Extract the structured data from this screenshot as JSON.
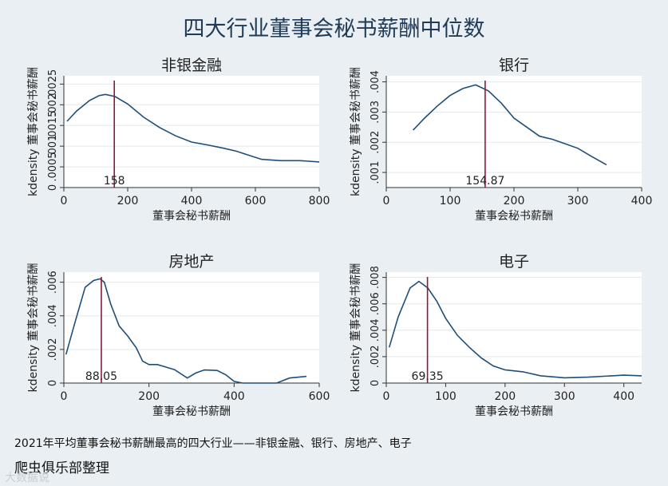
{
  "title": "四大行业董事会秘书薪酬中位数",
  "note": "2021年平均董事会秘书薪酬最高的四大行业——非银金融、银行、房地产、电子",
  "credit": "爬虫俱乐部整理",
  "watermark": "大数据说",
  "colors": {
    "background": "#e9eff3",
    "plot": "#ffffff",
    "line": "#1f4e79",
    "median": "#8b1a3a",
    "text": "#1f3b57"
  },
  "chart_data": [
    {
      "type": "line",
      "title": "非银金融",
      "xlabel": "董事会秘书薪酬",
      "ylabel": "kdensity 董事会秘书薪酬",
      "xlim": [
        0,
        800
      ],
      "ylim": [
        0,
        0.0027
      ],
      "xticks": [
        0,
        200,
        400,
        600,
        800
      ],
      "yticks": [
        0,
        0.0005,
        0.001,
        0.0015,
        0.002,
        0.0025
      ],
      "ytick_labels": [
        "0",
        ".0005",
        ".001",
        ".0015",
        ".002",
        ".0025"
      ],
      "median": 158,
      "median_label": "158",
      "x": [
        10,
        40,
        80,
        110,
        130,
        160,
        200,
        250,
        300,
        350,
        400,
        450,
        500,
        540,
        580,
        620,
        680,
        740,
        800
      ],
      "y": [
        0.0016,
        0.00185,
        0.0021,
        0.00222,
        0.00225,
        0.0022,
        0.00202,
        0.0017,
        0.00145,
        0.00125,
        0.0011,
        0.00103,
        0.00095,
        0.00088,
        0.00078,
        0.00068,
        0.00065,
        0.00065,
        0.00062
      ]
    },
    {
      "type": "line",
      "title": "银行",
      "xlabel": "董事会秘书薪酬",
      "ylabel": "kdensity 董事会秘书薪酬",
      "xlim": [
        0,
        400
      ],
      "ylim": [
        0.0005,
        0.0042
      ],
      "xticks": [
        0,
        100,
        200,
        300,
        400
      ],
      "yticks": [
        0.001,
        0.002,
        0.003,
        0.004
      ],
      "ytick_labels": [
        ".001",
        ".002",
        ".003",
        ".004"
      ],
      "median": 154.87,
      "median_label": "154.87",
      "x": [
        42,
        60,
        80,
        100,
        120,
        140,
        160,
        180,
        200,
        220,
        240,
        260,
        280,
        300,
        320,
        345
      ],
      "y": [
        0.0024,
        0.0028,
        0.0032,
        0.00355,
        0.00378,
        0.0039,
        0.0037,
        0.0033,
        0.0028,
        0.0025,
        0.0022,
        0.0021,
        0.00195,
        0.0018,
        0.00155,
        0.00125
      ]
    },
    {
      "type": "line",
      "title": "房地产",
      "xlabel": "董事会秘书薪酬",
      "ylabel": "kdensity 董事会秘书薪酬",
      "xlim": [
        0,
        600
      ],
      "ylim": [
        0,
        0.0066
      ],
      "xticks": [
        0,
        200,
        400,
        600
      ],
      "yticks": [
        0,
        0.002,
        0.004,
        0.006
      ],
      "ytick_labels": [
        "0",
        ".002",
        ".004",
        ".006"
      ],
      "median": 88.05,
      "median_label": "88.05",
      "x": [
        5,
        25,
        50,
        70,
        85,
        95,
        110,
        130,
        150,
        170,
        185,
        200,
        220,
        240,
        260,
        290,
        310,
        330,
        360,
        380,
        400,
        420,
        450,
        500,
        530,
        570
      ],
      "y": [
        0.0017,
        0.0035,
        0.0057,
        0.0061,
        0.0062,
        0.006,
        0.0047,
        0.0034,
        0.0028,
        0.0021,
        0.0013,
        0.0011,
        0.0011,
        0.00095,
        0.0008,
        0.0003,
        0.0006,
        0.00078,
        0.00075,
        0.0005,
        0.0001,
        0.0,
        0.0,
        0.0,
        0.0003,
        0.0004
      ]
    },
    {
      "type": "line",
      "title": "电子",
      "xlabel": "董事会秘书薪酬",
      "ylabel": "kdensity 董事会秘书薪酬",
      "xlim": [
        0,
        430
      ],
      "ylim": [
        0,
        0.0084
      ],
      "xticks": [
        0,
        100,
        200,
        300,
        400
      ],
      "yticks": [
        0,
        0.002,
        0.004,
        0.006,
        0.008
      ],
      "ytick_labels": [
        "0",
        ".002",
        ".004",
        ".006",
        ".008"
      ],
      "median": 69.35,
      "median_label": "69.35",
      "x": [
        5,
        20,
        40,
        55,
        70,
        85,
        100,
        120,
        140,
        160,
        180,
        200,
        230,
        260,
        300,
        340,
        380,
        400,
        430
      ],
      "y": [
        0.0027,
        0.005,
        0.0072,
        0.0077,
        0.0072,
        0.0062,
        0.0049,
        0.0036,
        0.0027,
        0.0019,
        0.0013,
        0.001,
        0.00085,
        0.00055,
        0.0004,
        0.00045,
        0.00055,
        0.0006,
        0.00055
      ]
    }
  ]
}
